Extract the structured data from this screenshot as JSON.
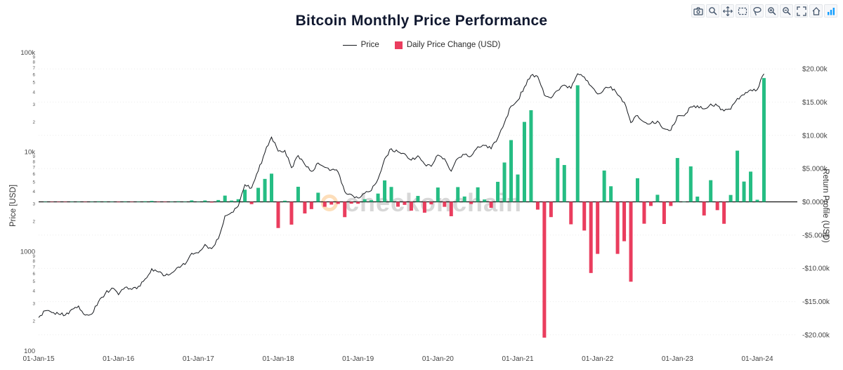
{
  "title": "Bitcoin Monthly Price Performance",
  "legend": {
    "price_label": "Price",
    "change_label": "Daily Price Change (USD)"
  },
  "watermark": "checkonchain",
  "axes": {
    "left_title": "Price [USD]",
    "right_title": "Return Profile (USD)",
    "left_major_tick_labels": [
      "100",
      "1000",
      "10k",
      "100k"
    ],
    "right_tick_labels": [
      "$20.00k",
      "$15.00k",
      "$10.00k",
      "$5.000k",
      "$0.0000",
      "-$5.000k",
      "-$10.00k",
      "-$15.00k",
      "-$20.00k"
    ],
    "x_tick_labels": [
      "01-Jan-15",
      "01-Jan-16",
      "01-Jan-17",
      "01-Jan-18",
      "01-Jan-19",
      "01-Jan-20",
      "01-Jan-21",
      "01-Jan-22",
      "01-Jan-23",
      "01-Jan-24"
    ]
  },
  "colors": {
    "up": "#25bd83",
    "down": "#ea3d5e",
    "line": "#15181d",
    "zero_line": "#111111",
    "grid": "#ebebeb",
    "tick_text": "#444444",
    "title_text": "#10182f",
    "watermark_orange": "#f7931a",
    "modebar_icon": "#3d4f66",
    "plotly_blue": "#119dff"
  },
  "modebar": [
    "camera",
    "zoom",
    "pan",
    "box-select",
    "lasso",
    "zoom-in",
    "zoom-out",
    "autoscale",
    "reset-axes",
    "plotly-logo"
  ],
  "chart_data": {
    "type": "mixed",
    "title": "Bitcoin Monthly Price Performance",
    "x_months": [
      "2015-01",
      "2015-02",
      "2015-03",
      "2015-04",
      "2015-05",
      "2015-06",
      "2015-07",
      "2015-08",
      "2015-09",
      "2015-10",
      "2015-11",
      "2015-12",
      "2016-01",
      "2016-02",
      "2016-03",
      "2016-04",
      "2016-05",
      "2016-06",
      "2016-07",
      "2016-08",
      "2016-09",
      "2016-10",
      "2016-11",
      "2016-12",
      "2017-01",
      "2017-02",
      "2017-03",
      "2017-04",
      "2017-05",
      "2017-06",
      "2017-07",
      "2017-08",
      "2017-09",
      "2017-10",
      "2017-11",
      "2017-12",
      "2018-01",
      "2018-02",
      "2018-03",
      "2018-04",
      "2018-05",
      "2018-06",
      "2018-07",
      "2018-08",
      "2018-09",
      "2018-10",
      "2018-11",
      "2018-12",
      "2019-01",
      "2019-02",
      "2019-03",
      "2019-04",
      "2019-05",
      "2019-06",
      "2019-07",
      "2019-08",
      "2019-09",
      "2019-10",
      "2019-11",
      "2019-12",
      "2020-01",
      "2020-02",
      "2020-03",
      "2020-04",
      "2020-05",
      "2020-06",
      "2020-07",
      "2020-08",
      "2020-09",
      "2020-10",
      "2020-11",
      "2020-12",
      "2021-01",
      "2021-02",
      "2021-03",
      "2021-04",
      "2021-05",
      "2021-06",
      "2021-07",
      "2021-08",
      "2021-09",
      "2021-10",
      "2021-11",
      "2021-12",
      "2022-01",
      "2022-02",
      "2022-03",
      "2022-04",
      "2022-05",
      "2022-06",
      "2022-07",
      "2022-08",
      "2022-09",
      "2022-10",
      "2022-11",
      "2022-12",
      "2023-01",
      "2023-02",
      "2023-03",
      "2023-04",
      "2023-05",
      "2023-06",
      "2023-07",
      "2023-08",
      "2023-09",
      "2023-10",
      "2023-11",
      "2023-12",
      "2024-01",
      "2024-02"
    ],
    "series": [
      {
        "name": "Price",
        "type": "line",
        "yaxis": "left-log",
        "values": [
          217,
          254,
          244,
          236,
          230,
          263,
          284,
          230,
          236,
          314,
          377,
          430,
          368,
          437,
          416,
          448,
          531,
          673,
          624,
          573,
          609,
          700,
          742,
          963,
          970,
          1179,
          1071,
          1347,
          2286,
          2480,
          2875,
          4703,
          4360,
          6468,
          9916,
          14156,
          10221,
          10397,
          6973,
          9240,
          7494,
          6404,
          7780,
          7037,
          6625,
          6317,
          4017,
          3742,
          3457,
          3854,
          4105,
          5350,
          8574,
          10817,
          10085,
          9630,
          8308,
          9199,
          7569,
          7193,
          9350,
          8599,
          6438,
          8658,
          9461,
          9137,
          11323,
          11680,
          10784,
          13797,
          19713,
          29001,
          33114,
          45137,
          58918,
          57750,
          37332,
          35040,
          41626,
          47166,
          43790,
          61318,
          57005,
          46306,
          38483,
          43193,
          45538,
          37714,
          31792,
          19784,
          23336,
          20049,
          19431,
          20495,
          17168,
          16547,
          23139,
          23147,
          28478,
          29268,
          27219,
          30477,
          29230,
          25931,
          26967,
          34667,
          37718,
          42265,
          42580,
          61198
        ]
      },
      {
        "name": "Daily Price Change (USD)",
        "type": "bar",
        "yaxis": "right-linear",
        "values": [
          null,
          37,
          -10,
          -8,
          -6,
          33,
          21,
          -54,
          6,
          78,
          63,
          53,
          -62,
          69,
          -21,
          32,
          83,
          142,
          -49,
          -51,
          36,
          91,
          42,
          221,
          7,
          209,
          -108,
          276,
          939,
          194,
          395,
          1828,
          -343,
          2108,
          3448,
          4240,
          -3935,
          176,
          -3424,
          2267,
          -1746,
          -1090,
          1376,
          -743,
          -412,
          -308,
          -2300,
          -275,
          -285,
          397,
          251,
          1245,
          3224,
          2243,
          -732,
          -455,
          -1322,
          891,
          -1630,
          -376,
          2157,
          -751,
          -2161,
          2220,
          803,
          -324,
          2186,
          357,
          -896,
          3013,
          5916,
          9288,
          4113,
          12023,
          13781,
          -1168,
          -20418,
          -2292,
          6586,
          5540,
          -3376,
          17528,
          -4313,
          -10699,
          -7823,
          4710,
          2345,
          -7824,
          -5922,
          -12008,
          3552,
          -3287,
          -618,
          1064,
          -3327,
          -621,
          6592,
          8,
          5331,
          790,
          -2049,
          3258,
          -1247,
          -3299,
          1036,
          7700,
          3051,
          4547,
          315,
          18618
        ]
      }
    ],
    "left_axis": {
      "scale": "log",
      "range": [
        100,
        100000
      ],
      "title": "Price [USD]"
    },
    "right_axis": {
      "scale": "linear",
      "range": [
        -22435,
        22435
      ],
      "tick_step": 5000,
      "title": "Return Profile (USD)"
    },
    "x_axis": {
      "year_tick_labels": [
        "01-Jan-15",
        "01-Jan-16",
        "01-Jan-17",
        "01-Jan-18",
        "01-Jan-19",
        "01-Jan-20",
        "01-Jan-21",
        "01-Jan-22",
        "01-Jan-23",
        "01-Jan-24"
      ]
    }
  }
}
